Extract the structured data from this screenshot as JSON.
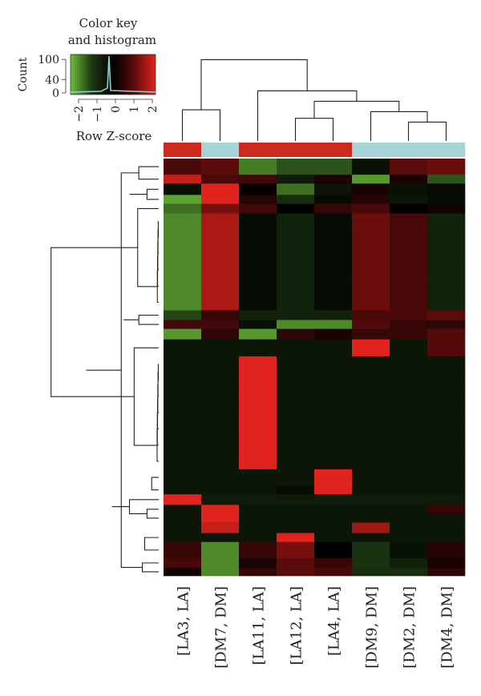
{
  "chart_data": {
    "type": "heatmap",
    "color_key": {
      "title_line1": "Color key",
      "title_line2": "and histogram",
      "count_label": "Count",
      "count_ticks": [
        "0",
        "40",
        "100"
      ],
      "x_label": "Row Z-score",
      "x_ticks": [
        "−2",
        "−1",
        "0",
        "1",
        "2"
      ],
      "gradient": [
        "#6fbf3a",
        "#1c3812",
        "#000000",
        "#5c0b0b",
        "#e0231c"
      ],
      "histogram_color": "#8fd0d0"
    },
    "columns": [
      "[LA3, LA]",
      "[DM7, DM]",
      "[LA11, LA]",
      "[LA12, LA]",
      "[LA4, LA]",
      "[DM9, DM]",
      "[DM2, DM]",
      "[DM4, DM]"
    ],
    "column_groups": [
      "LA",
      "DM",
      "LA",
      "LA",
      "LA",
      "DM",
      "DM",
      "DM"
    ],
    "group_colors": {
      "LA": "#cc2a1c",
      "DM": "#a6d3d6"
    },
    "row_zscores": [
      [
        0.8,
        1.0,
        -1.5,
        -1.2,
        -1.2,
        -0.3,
        1.0,
        1.1
      ],
      [
        1.8,
        0.8,
        0.7,
        -0.5,
        0.3,
        -1.7,
        0.3,
        -1.2
      ],
      [
        -0.3,
        2.0,
        0.1,
        -1.4,
        -0.4,
        0.3,
        -0.3,
        -0.2
      ],
      [
        -1.8,
        2.0,
        0.4,
        -0.8,
        -0.2,
        0.4,
        -0.4,
        -0.2
      ],
      [
        -1.4,
        1.2,
        0.7,
        0.0,
        0.6,
        0.8,
        0.0,
        0.2
      ],
      [
        -1.6,
        1.6,
        -0.2,
        -0.6,
        -0.2,
        1.1,
        0.8,
        -0.6
      ],
      [
        -1.6,
        1.6,
        -0.2,
        -0.6,
        -0.2,
        1.1,
        0.8,
        -0.6
      ],
      [
        -1.6,
        1.6,
        -0.2,
        -0.6,
        -0.2,
        1.1,
        0.8,
        -0.6
      ],
      [
        -1.6,
        1.6,
        -0.2,
        -0.6,
        -0.2,
        1.1,
        0.8,
        -0.6
      ],
      [
        -1.6,
        1.6,
        -0.2,
        -0.6,
        -0.2,
        1.1,
        0.8,
        -0.6
      ],
      [
        -1.6,
        1.6,
        -0.2,
        -0.6,
        -0.2,
        1.1,
        0.8,
        -0.6
      ],
      [
        -1.1,
        0.6,
        -0.6,
        -0.6,
        -0.6,
        0.8,
        0.8,
        1.0
      ],
      [
        0.7,
        0.7,
        -0.3,
        -1.6,
        -1.6,
        0.9,
        0.6,
        0.5
      ],
      [
        -1.7,
        0.5,
        -1.7,
        0.5,
        0.3,
        0.6,
        0.6,
        0.9
      ],
      [
        -0.4,
        -0.4,
        -0.4,
        -0.4,
        -0.4,
        2.0,
        -0.4,
        0.9
      ],
      [
        -0.4,
        -0.4,
        2.0,
        -0.4,
        -0.4,
        -0.4,
        -0.4,
        -0.4
      ],
      [
        -0.4,
        -0.4,
        2.0,
        -0.4,
        -0.4,
        -0.4,
        -0.4,
        -0.4
      ],
      [
        -0.4,
        -0.4,
        2.0,
        -0.4,
        -0.4,
        -0.4,
        -0.4,
        -0.4
      ],
      [
        -0.4,
        -0.4,
        2.0,
        -0.4,
        -0.4,
        -0.4,
        -0.4,
        -0.4
      ],
      [
        -0.4,
        -0.4,
        2.0,
        -0.4,
        -0.4,
        -0.4,
        -0.4,
        -0.4
      ],
      [
        -0.4,
        -0.4,
        2.0,
        -0.4,
        -0.4,
        -0.4,
        -0.4,
        -0.4
      ],
      [
        -0.4,
        -0.4,
        2.0,
        -0.4,
        -0.4,
        -0.4,
        -0.4,
        -0.4
      ],
      [
        -0.4,
        -0.4,
        -0.4,
        -0.4,
        2.0,
        -0.4,
        -0.4,
        -0.4
      ],
      [
        -0.4,
        -0.4,
        -0.4,
        -0.2,
        2.0,
        -0.4,
        -0.4,
        -0.4
      ],
      [
        2.0,
        -0.5,
        -0.5,
        -0.5,
        -0.5,
        -0.5,
        -0.5,
        -0.5
      ],
      [
        -0.4,
        2.0,
        -0.4,
        -0.4,
        -0.4,
        -0.4,
        -0.4,
        0.6
      ],
      [
        -0.4,
        2.0,
        -0.4,
        -0.4,
        -0.4,
        -0.4,
        -0.4,
        -0.4
      ],
      [
        -0.4,
        1.8,
        -0.4,
        -0.4,
        -0.4,
        1.5,
        -0.4,
        -0.4
      ],
      [
        -0.4,
        -0.4,
        -0.4,
        2.0,
        -0.4,
        -0.4,
        -0.4,
        -0.4
      ],
      [
        0.6,
        -1.6,
        0.6,
        1.2,
        0.0,
        -0.9,
        -0.3,
        0.4
      ],
      [
        0.8,
        -1.6,
        0.3,
        1.0,
        0.6,
        -0.9,
        -0.6,
        0.3
      ],
      [
        0.2,
        -1.6,
        0.6,
        1.0,
        0.8,
        -0.8,
        -0.8,
        0.5
      ]
    ],
    "row_heights": [
      1.0,
      0.55,
      0.7,
      0.55,
      0.6,
      1.0,
      1.0,
      1.0,
      1.0,
      1.0,
      1.0,
      0.6,
      0.55,
      0.65,
      1.05,
      1.0,
      1.0,
      1.0,
      1.0,
      1.0,
      1.0,
      1.0,
      1.0,
      0.55,
      0.65,
      0.55,
      0.55,
      0.65,
      0.55,
      1.0,
      0.6,
      0.5
    ],
    "column_dendrogram": [
      [
        0,
        1,
        0.33
      ],
      [
        3,
        4,
        0.24
      ],
      [
        6,
        7,
        0.2
      ],
      [
        5,
        10,
        0.31
      ],
      [
        9,
        11,
        0.42
      ],
      [
        2,
        12,
        0.53
      ],
      [
        8,
        13,
        0.86
      ]
    ],
    "row_dendrogram": [
      [
        5,
        6,
        0.004
      ],
      [
        32,
        7,
        0.006
      ],
      [
        33,
        8,
        0.008
      ],
      [
        34,
        9,
        0.01
      ],
      [
        35,
        10,
        0.012
      ],
      [
        15,
        16,
        0.004
      ],
      [
        37,
        17,
        0.006
      ],
      [
        38,
        18,
        0.008
      ],
      [
        39,
        19,
        0.01
      ],
      [
        40,
        20,
        0.012
      ],
      [
        41,
        21,
        0.014
      ],
      [
        22,
        23,
        0.06
      ],
      [
        25,
        26,
        0.1
      ],
      [
        28,
        29,
        0.12
      ],
      [
        30,
        31,
        0.14
      ],
      [
        0,
        1,
        0.17
      ],
      [
        2,
        3,
        0.1
      ],
      [
        48,
        49,
        0.25
      ],
      [
        36,
        4,
        0.18
      ],
      [
        11,
        12,
        0.17
      ],
      [
        52,
        13,
        0.24
      ],
      [
        51,
        53,
        0.3
      ],
      [
        42,
        14,
        0.21
      ],
      [
        55,
        43,
        0.3
      ],
      [
        24,
        44,
        0.25
      ],
      [
        57,
        27,
        0.32
      ],
      [
        56,
        58,
        0.4
      ],
      [
        59,
        45,
        0.55
      ],
      [
        46,
        47,
        0.32
      ],
      [
        60,
        61,
        0.62
      ],
      [
        50,
        54,
        0.92
      ]
    ]
  }
}
